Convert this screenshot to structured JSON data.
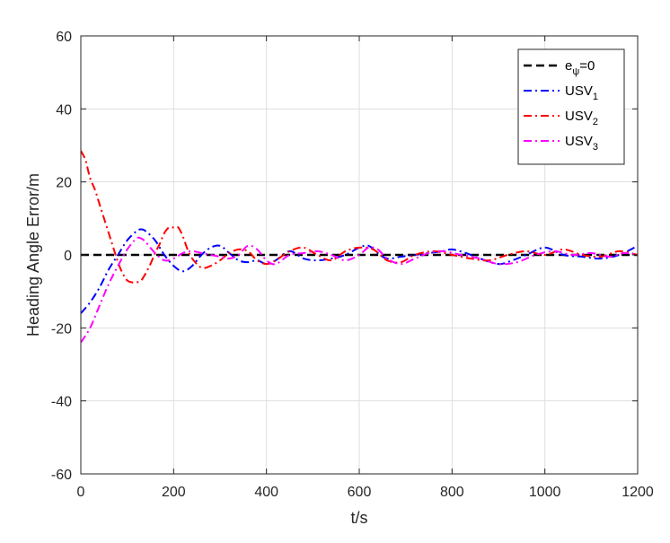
{
  "chart_data": {
    "type": "line",
    "title": "",
    "xlabel": "t/s",
    "ylabel": "Heading Angle Error/m",
    "xlim": [
      0,
      1200
    ],
    "ylim": [
      -60,
      60
    ],
    "xticks": [
      0,
      200,
      400,
      600,
      800,
      1000,
      1200
    ],
    "yticks": [
      -60,
      -40,
      -20,
      0,
      20,
      40,
      60
    ],
    "xtick_labels": [
      "0",
      "200",
      "400",
      "600",
      "800",
      "1000",
      "1200"
    ],
    "ytick_labels": [
      "-60",
      "-40",
      "-20",
      "0",
      "20",
      "40",
      "60"
    ],
    "grid": true,
    "legend_position": "top-right",
    "series": [
      {
        "name": "e",
        "name_subscript": "ψ",
        "name_suffix": "=0",
        "color": "#000000",
        "style": "dashed",
        "x": [
          0,
          1200
        ],
        "y": [
          0,
          0
        ]
      },
      {
        "name": "USV",
        "name_subscript": "1",
        "name_suffix": "",
        "color": "#0000ff",
        "style": "dashdot",
        "x": [
          0,
          20,
          40,
          60,
          80,
          100,
          120,
          130,
          140,
          160,
          180,
          200,
          220,
          240,
          260,
          280,
          300,
          320,
          340,
          360,
          380,
          400,
          420,
          450,
          480,
          510,
          540,
          570,
          600,
          620,
          640,
          660,
          690,
          720,
          750,
          780,
          800,
          830,
          860,
          900,
          930,
          960,
          1000,
          1040,
          1080,
          1120,
          1160,
          1200
        ],
        "y": [
          -16,
          -13,
          -9,
          -4,
          0,
          4,
          6.5,
          7,
          6.5,
          4,
          0,
          -3,
          -4.5,
          -3,
          0,
          2,
          2.5,
          0.5,
          -1.5,
          -2,
          -1.5,
          -2.5,
          -1.5,
          1,
          -1,
          -1.5,
          -1,
          0,
          2,
          2.5,
          0.5,
          -1,
          -0.5,
          0,
          0.5,
          1,
          1.5,
          0.5,
          -1,
          -2.5,
          -1.5,
          0,
          2,
          0,
          -0.5,
          -1,
          0,
          2.5
        ]
      },
      {
        "name": "USV",
        "name_subscript": "2",
        "name_suffix": "",
        "color": "#ff0000",
        "style": "dashdot",
        "x": [
          0,
          10,
          20,
          30,
          40,
          50,
          60,
          70,
          80,
          90,
          100,
          110,
          120,
          130,
          140,
          150,
          160,
          170,
          180,
          190,
          200,
          210,
          220,
          230,
          240,
          260,
          280,
          300,
          320,
          340,
          360,
          380,
          400,
          420,
          450,
          480,
          510,
          540,
          570,
          600,
          630,
          660,
          690,
          720,
          760,
          800,
          840,
          880,
          920,
          960,
          1000,
          1040,
          1080,
          1120,
          1160,
          1200
        ],
        "y": [
          28.5,
          26,
          21,
          18,
          14,
          10,
          6,
          2,
          -2,
          -5,
          -7,
          -7.5,
          -7.5,
          -7,
          -5,
          -2.5,
          0.5,
          3,
          6,
          7.5,
          7.5,
          7.5,
          5,
          1.5,
          -1,
          -3.5,
          -3,
          -1.5,
          0.5,
          1.5,
          1,
          -1.5,
          -2.5,
          -1.5,
          1,
          2,
          0,
          -1.5,
          1,
          2,
          1.5,
          -1.5,
          -2,
          0,
          1,
          0,
          -1,
          -1.5,
          0,
          1,
          0,
          1.5,
          0,
          -0.5,
          1,
          0
        ]
      },
      {
        "name": "USV",
        "name_subscript": "3",
        "name_suffix": "",
        "color": "#ff00ff",
        "style": "dashdot",
        "x": [
          0,
          20,
          40,
          60,
          80,
          100,
          120,
          130,
          140,
          160,
          180,
          200,
          220,
          240,
          260,
          280,
          300,
          320,
          340,
          360,
          380,
          400,
          420,
          450,
          480,
          510,
          540,
          570,
          600,
          620,
          640,
          660,
          690,
          720,
          750,
          780,
          820,
          860,
          900,
          940,
          980,
          1020,
          1060,
          1100,
          1140,
          1170,
          1200
        ],
        "y": [
          -24,
          -20,
          -14,
          -8,
          -3,
          1.5,
          4.5,
          4.5,
          3.5,
          0.5,
          -1.5,
          -1,
          0.5,
          1,
          0.5,
          0,
          -0.5,
          -1,
          0,
          2.5,
          1.5,
          -1.5,
          -2.5,
          0,
          0.5,
          1,
          0,
          -1.5,
          0,
          2,
          1.5,
          -1,
          -2.5,
          -1,
          0.5,
          1,
          0,
          -1,
          -2.5,
          -2,
          0,
          1,
          0,
          0.5,
          -0.5,
          0.5,
          0
        ]
      }
    ]
  }
}
